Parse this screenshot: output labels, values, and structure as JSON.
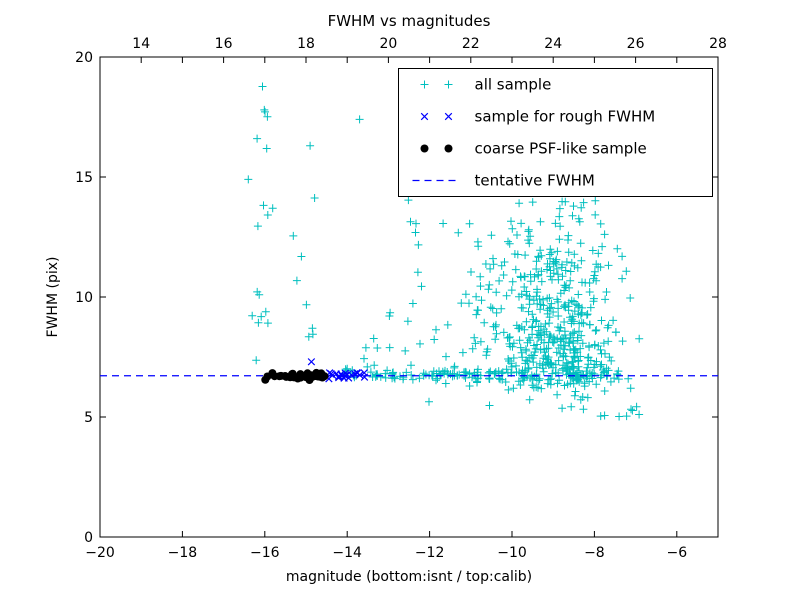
{
  "chart_data": {
    "type": "scatter",
    "title": "FWHM vs magnitudes",
    "xlabel": "magnitude (bottom:isnt / top:calib)",
    "ylabel": "FWHM (pix)",
    "xlim": [
      -20,
      -5
    ],
    "ylim": [
      0,
      20
    ],
    "x_ticks": [
      -20,
      -18,
      -16,
      -14,
      -12,
      -10,
      -8,
      -6
    ],
    "top_ticks": [
      14,
      16,
      18,
      20,
      22,
      24,
      26,
      28
    ],
    "top_axis_offset": 33,
    "y_ticks": [
      0,
      5,
      10,
      15,
      20
    ],
    "grid": false,
    "legend_position": "upper right",
    "tentative_fwhm": 6.72,
    "colors": {
      "all_sample": "#00bfbf",
      "rough_sample": "#0000ff",
      "coarse_sample": "#000000",
      "tentative_line": "#0000ff",
      "axes": "#000000",
      "background": "#ffffff"
    },
    "series": [
      {
        "name": "all sample",
        "marker": "plus",
        "color": "#00bfbf",
        "clusters": [
          {
            "n": 150,
            "x": [
              "u",
              -14.15,
              -7.3
            ],
            "y": [
              "g",
              6.75,
              0.16
            ]
          },
          {
            "n": 260,
            "x": [
              "g",
              -8.95,
              0.7
            ],
            "y": [
              "g",
              10.3,
              2.1
            ]
          },
          {
            "n": 160,
            "x": [
              "g",
              -8.8,
              0.6
            ],
            "y": [
              "g",
              7.4,
              0.9
            ]
          },
          {
            "n": 90,
            "x": [
              "g",
              -10.4,
              0.8
            ],
            "y": [
              "g",
              9.0,
              2.2
            ]
          },
          {
            "n": 18,
            "x": [
              "g",
              -16.05,
              0.12
            ],
            "y": [
              "u",
              7.2,
              19.5
            ]
          },
          {
            "n": 8,
            "x": [
              "g",
              -15.05,
              0.15
            ],
            "y": [
              "u",
              7.5,
              18.3
            ]
          },
          {
            "n": 11,
            "x": [
              "g",
              -12.35,
              0.12
            ],
            "y": [
              "u",
              7.0,
              14.3
            ]
          },
          {
            "n": 9,
            "x": [
              "u",
              -13.9,
              -12.5
            ],
            "y": [
              "u",
              6.9,
              9.5
            ]
          },
          {
            "n": 10,
            "x": [
              "u",
              -8.0,
              -6.85
            ],
            "y": [
              "u",
              5.0,
              6.6
            ]
          }
        ],
        "points": [
          [
            -16.4,
            14.9
          ],
          [
            -13.7,
            17.4
          ],
          [
            -14.9,
            16.3
          ]
        ],
        "clip": {
          "x": [
            -16.6,
            -6.7
          ],
          "y": [
            4.6,
            19.6
          ]
        }
      },
      {
        "name": "sample for rough FWHM",
        "marker": "x",
        "color": "#0000ff",
        "clusters": [
          {
            "n": 22,
            "x": [
              "u",
              -14.5,
              -13.55
            ],
            "y": [
              "g",
              6.72,
              0.07
            ]
          }
        ],
        "points": [
          [
            -14.87,
            7.3
          ]
        ],
        "clip": {
          "x": [
            -16.6,
            -6.7
          ],
          "y": [
            4.6,
            19.6
          ]
        }
      },
      {
        "name": "coarse PSF-like sample",
        "marker": "dot",
        "color": "#000000",
        "clusters": [
          {
            "n": 34,
            "x": [
              "u",
              -16.05,
              -14.55
            ],
            "y": [
              "g",
              6.7,
              0.07
            ]
          }
        ],
        "points": [],
        "clip": {
          "x": [
            -16.6,
            -6.7
          ],
          "y": [
            4.6,
            19.6
          ]
        }
      },
      {
        "name": "tentative FWHM",
        "marker": "dashed-line",
        "color": "#0000ff",
        "y": 6.72
      }
    ]
  }
}
